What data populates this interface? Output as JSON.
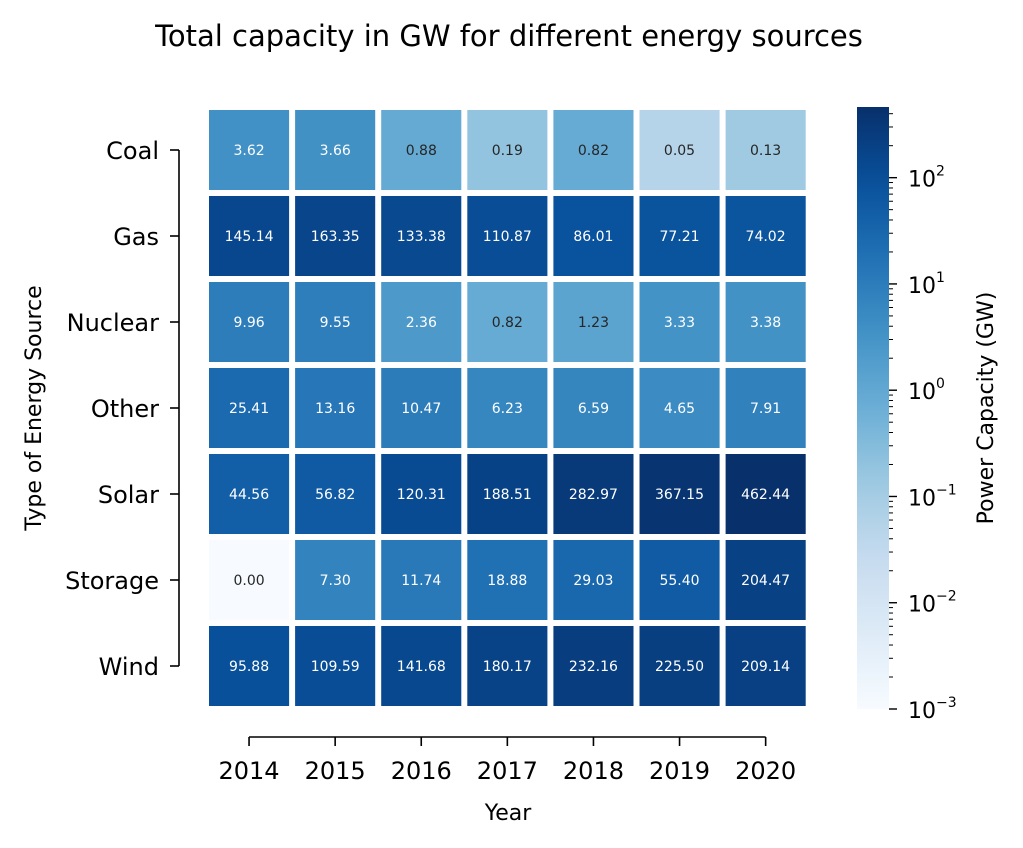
{
  "chart_data": {
    "type": "heatmap",
    "title": "Total capacity in GW for different energy sources",
    "xlabel": "Year",
    "ylabel": "Type of Energy Source",
    "colorbar_label": "Power Capacity (GW)",
    "colorbar_scale": "log",
    "colorbar_range": [
      0.001,
      462.44
    ],
    "colorbar_ticks": [
      {
        "value": 0.001,
        "base": "10",
        "exp": "−3"
      },
      {
        "value": 0.01,
        "base": "10",
        "exp": "−2"
      },
      {
        "value": 0.1,
        "base": "10",
        "exp": "−1"
      },
      {
        "value": 1,
        "base": "10",
        "exp": "0"
      },
      {
        "value": 10,
        "base": "10",
        "exp": "1"
      },
      {
        "value": 100,
        "base": "10",
        "exp": "2"
      }
    ],
    "colormap": "Blues",
    "x": [
      "2014",
      "2015",
      "2016",
      "2017",
      "2018",
      "2019",
      "2020"
    ],
    "y": [
      "Coal",
      "Gas",
      "Nuclear",
      "Other",
      "Solar",
      "Storage",
      "Wind"
    ],
    "values": [
      [
        3.62,
        3.66,
        0.88,
        0.19,
        0.82,
        0.05,
        0.13
      ],
      [
        145.14,
        163.35,
        133.38,
        110.87,
        86.01,
        77.21,
        74.02
      ],
      [
        9.96,
        9.55,
        2.36,
        0.82,
        1.23,
        3.33,
        3.38
      ],
      [
        25.41,
        13.16,
        10.47,
        6.23,
        6.59,
        4.65,
        7.91
      ],
      [
        44.56,
        56.82,
        120.31,
        188.51,
        282.97,
        367.15,
        462.44
      ],
      [
        0.0,
        7.3,
        11.74,
        18.88,
        29.03,
        55.4,
        204.47
      ],
      [
        95.88,
        109.59,
        141.68,
        180.17,
        232.16,
        225.5,
        209.14
      ]
    ],
    "labels": [
      [
        "3.62",
        "3.66",
        "0.88",
        "0.19",
        "0.82",
        "0.05",
        "0.13"
      ],
      [
        "145.14",
        "163.35",
        "133.38",
        "110.87",
        "86.01",
        "77.21",
        "74.02"
      ],
      [
        "9.96",
        "9.55",
        "2.36",
        "0.82",
        "1.23",
        "3.33",
        "3.38"
      ],
      [
        "25.41",
        "13.16",
        "10.47",
        "6.23",
        "6.59",
        "4.65",
        "7.91"
      ],
      [
        "44.56",
        "56.82",
        "120.31",
        "188.51",
        "282.97",
        "367.15",
        "462.44"
      ],
      [
        "0.00",
        "7.30",
        "11.74",
        "18.88",
        "29.03",
        "55.40",
        "204.47"
      ],
      [
        "95.88",
        "109.59",
        "141.68",
        "180.17",
        "232.16",
        "225.50",
        "209.14"
      ]
    ]
  }
}
